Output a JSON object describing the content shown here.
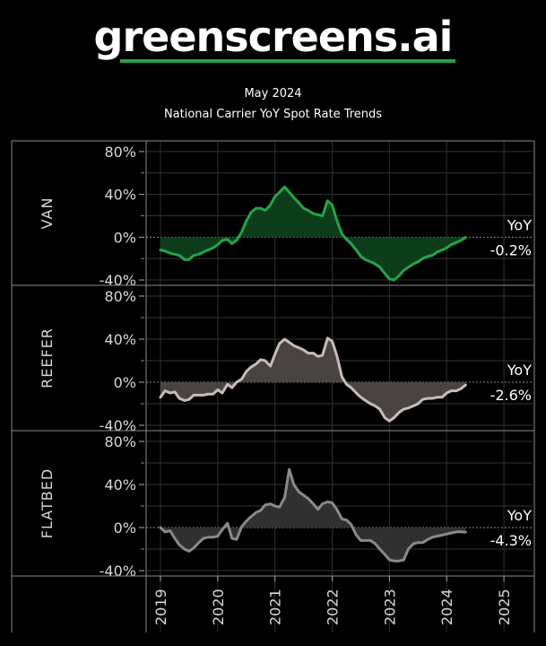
{
  "brand": {
    "name": "greenscreens.ai",
    "accent": "#1fa64a"
  },
  "chart_data": {
    "type": "area",
    "date": "May 2024",
    "title": "National Carrier YoY Spot Rate Trends",
    "x_ticks": [
      "2019",
      "2020",
      "2021",
      "2022",
      "2023",
      "2024",
      "2025"
    ],
    "x_range": [
      2018.75,
      2025.5
    ],
    "y_ticks": [
      "80%",
      "40%",
      "0%",
      "-40%"
    ],
    "y_range": [
      -45,
      90
    ],
    "panels": [
      {
        "name": "VAN",
        "color": "#1fa64a",
        "fill": "#0e3f1c",
        "yoy_label": "YoY",
        "yoy_value": "-0.2%",
        "points": [
          [
            2019.0,
            -12
          ],
          [
            2019.08,
            -13
          ],
          [
            2019.17,
            -15
          ],
          [
            2019.25,
            -16
          ],
          [
            2019.33,
            -17
          ],
          [
            2019.42,
            -21
          ],
          [
            2019.5,
            -21
          ],
          [
            2019.58,
            -17
          ],
          [
            2019.67,
            -16
          ],
          [
            2019.75,
            -14
          ],
          [
            2019.83,
            -12
          ],
          [
            2019.92,
            -10
          ],
          [
            2020.0,
            -7
          ],
          [
            2020.08,
            -3
          ],
          [
            2020.17,
            -2
          ],
          [
            2020.25,
            -6
          ],
          [
            2020.33,
            -3
          ],
          [
            2020.42,
            5
          ],
          [
            2020.5,
            15
          ],
          [
            2020.58,
            23
          ],
          [
            2020.67,
            27
          ],
          [
            2020.75,
            27
          ],
          [
            2020.83,
            25
          ],
          [
            2020.92,
            30
          ],
          [
            2021.0,
            38
          ],
          [
            2021.08,
            42
          ],
          [
            2021.17,
            47
          ],
          [
            2021.25,
            42
          ],
          [
            2021.33,
            37
          ],
          [
            2021.42,
            32
          ],
          [
            2021.5,
            27
          ],
          [
            2021.58,
            25
          ],
          [
            2021.67,
            22
          ],
          [
            2021.75,
            21
          ],
          [
            2021.83,
            20
          ],
          [
            2021.92,
            34
          ],
          [
            2022.0,
            30
          ],
          [
            2022.08,
            16
          ],
          [
            2022.17,
            3
          ],
          [
            2022.25,
            -2
          ],
          [
            2022.33,
            -6
          ],
          [
            2022.42,
            -12
          ],
          [
            2022.5,
            -18
          ],
          [
            2022.58,
            -21
          ],
          [
            2022.67,
            -23
          ],
          [
            2022.75,
            -25
          ],
          [
            2022.83,
            -28
          ],
          [
            2022.92,
            -34
          ],
          [
            2023.0,
            -39
          ],
          [
            2023.08,
            -40
          ],
          [
            2023.17,
            -36
          ],
          [
            2023.25,
            -31
          ],
          [
            2023.33,
            -28
          ],
          [
            2023.42,
            -25
          ],
          [
            2023.5,
            -23
          ],
          [
            2023.58,
            -20
          ],
          [
            2023.67,
            -18
          ],
          [
            2023.75,
            -17
          ],
          [
            2023.83,
            -14
          ],
          [
            2023.92,
            -12
          ],
          [
            2024.0,
            -10
          ],
          [
            2024.08,
            -7
          ],
          [
            2024.17,
            -5
          ],
          [
            2024.25,
            -3
          ],
          [
            2024.33,
            -0.2
          ]
        ]
      },
      {
        "name": "REEFER",
        "color": "#c8bcbb",
        "fill": "#4d4746",
        "yoy_label": "YoY",
        "yoy_value": "-2.6%",
        "points": [
          [
            2019.0,
            -14
          ],
          [
            2019.08,
            -8
          ],
          [
            2019.17,
            -10
          ],
          [
            2019.25,
            -9
          ],
          [
            2019.33,
            -15
          ],
          [
            2019.42,
            -17
          ],
          [
            2019.5,
            -16
          ],
          [
            2019.58,
            -12
          ],
          [
            2019.67,
            -12
          ],
          [
            2019.75,
            -12
          ],
          [
            2019.83,
            -11
          ],
          [
            2019.92,
            -11
          ],
          [
            2020.0,
            -7
          ],
          [
            2020.08,
            -10
          ],
          [
            2020.17,
            -2
          ],
          [
            2020.25,
            -5
          ],
          [
            2020.33,
            0
          ],
          [
            2020.42,
            3
          ],
          [
            2020.5,
            10
          ],
          [
            2020.58,
            14
          ],
          [
            2020.67,
            17
          ],
          [
            2020.75,
            21
          ],
          [
            2020.83,
            20
          ],
          [
            2020.92,
            15
          ],
          [
            2021.0,
            26
          ],
          [
            2021.08,
            36
          ],
          [
            2021.17,
            40
          ],
          [
            2021.25,
            37
          ],
          [
            2021.33,
            34
          ],
          [
            2021.42,
            32
          ],
          [
            2021.5,
            30
          ],
          [
            2021.58,
            27
          ],
          [
            2021.67,
            27
          ],
          [
            2021.75,
            24
          ],
          [
            2021.83,
            25
          ],
          [
            2021.92,
            41
          ],
          [
            2022.0,
            38
          ],
          [
            2022.08,
            25
          ],
          [
            2022.17,
            5
          ],
          [
            2022.25,
            -2
          ],
          [
            2022.33,
            -5
          ],
          [
            2022.42,
            -10
          ],
          [
            2022.5,
            -14
          ],
          [
            2022.58,
            -17
          ],
          [
            2022.67,
            -20
          ],
          [
            2022.75,
            -22
          ],
          [
            2022.83,
            -25
          ],
          [
            2022.92,
            -33
          ],
          [
            2023.0,
            -36
          ],
          [
            2023.08,
            -33
          ],
          [
            2023.17,
            -28
          ],
          [
            2023.25,
            -25
          ],
          [
            2023.33,
            -24
          ],
          [
            2023.42,
            -22
          ],
          [
            2023.5,
            -20
          ],
          [
            2023.58,
            -16
          ],
          [
            2023.67,
            -15
          ],
          [
            2023.75,
            -15
          ],
          [
            2023.83,
            -14
          ],
          [
            2023.92,
            -14
          ],
          [
            2024.0,
            -10
          ],
          [
            2024.08,
            -8
          ],
          [
            2024.17,
            -8
          ],
          [
            2024.25,
            -6
          ],
          [
            2024.33,
            -2.6
          ]
        ]
      },
      {
        "name": "FLATBED",
        "color": "#8a8a8a",
        "fill": "#333333",
        "yoy_label": "YoY",
        "yoy_value": "-4.3%",
        "points": [
          [
            2019.0,
            0
          ],
          [
            2019.08,
            -4
          ],
          [
            2019.17,
            -3
          ],
          [
            2019.25,
            -10
          ],
          [
            2019.33,
            -16
          ],
          [
            2019.42,
            -20
          ],
          [
            2019.5,
            -22
          ],
          [
            2019.58,
            -19
          ],
          [
            2019.67,
            -14
          ],
          [
            2019.75,
            -10
          ],
          [
            2019.83,
            -9
          ],
          [
            2019.92,
            -9
          ],
          [
            2020.0,
            -8
          ],
          [
            2020.08,
            -2
          ],
          [
            2020.17,
            4
          ],
          [
            2020.25,
            -10
          ],
          [
            2020.33,
            -11
          ],
          [
            2020.42,
            1
          ],
          [
            2020.5,
            6
          ],
          [
            2020.58,
            10
          ],
          [
            2020.67,
            14
          ],
          [
            2020.75,
            16
          ],
          [
            2020.83,
            21
          ],
          [
            2020.92,
            22
          ],
          [
            2021.0,
            20
          ],
          [
            2021.08,
            19
          ],
          [
            2021.17,
            28
          ],
          [
            2021.25,
            54
          ],
          [
            2021.33,
            40
          ],
          [
            2021.42,
            33
          ],
          [
            2021.5,
            30
          ],
          [
            2021.58,
            27
          ],
          [
            2021.67,
            22
          ],
          [
            2021.75,
            17
          ],
          [
            2021.83,
            22
          ],
          [
            2021.92,
            24
          ],
          [
            2022.0,
            23
          ],
          [
            2022.08,
            17
          ],
          [
            2022.17,
            8
          ],
          [
            2022.25,
            7
          ],
          [
            2022.33,
            3
          ],
          [
            2022.42,
            -7
          ],
          [
            2022.5,
            -12
          ],
          [
            2022.58,
            -12
          ],
          [
            2022.67,
            -12
          ],
          [
            2022.75,
            -15
          ],
          [
            2022.83,
            -20
          ],
          [
            2022.92,
            -25
          ],
          [
            2023.0,
            -30
          ],
          [
            2023.08,
            -31
          ],
          [
            2023.17,
            -31
          ],
          [
            2023.25,
            -30
          ],
          [
            2023.33,
            -20
          ],
          [
            2023.42,
            -15
          ],
          [
            2023.5,
            -14
          ],
          [
            2023.58,
            -14
          ],
          [
            2023.67,
            -11
          ],
          [
            2023.75,
            -9
          ],
          [
            2023.83,
            -8
          ],
          [
            2023.92,
            -7
          ],
          [
            2024.0,
            -6
          ],
          [
            2024.08,
            -5
          ],
          [
            2024.17,
            -4
          ],
          [
            2024.25,
            -4
          ],
          [
            2024.33,
            -4.3
          ]
        ]
      }
    ]
  }
}
